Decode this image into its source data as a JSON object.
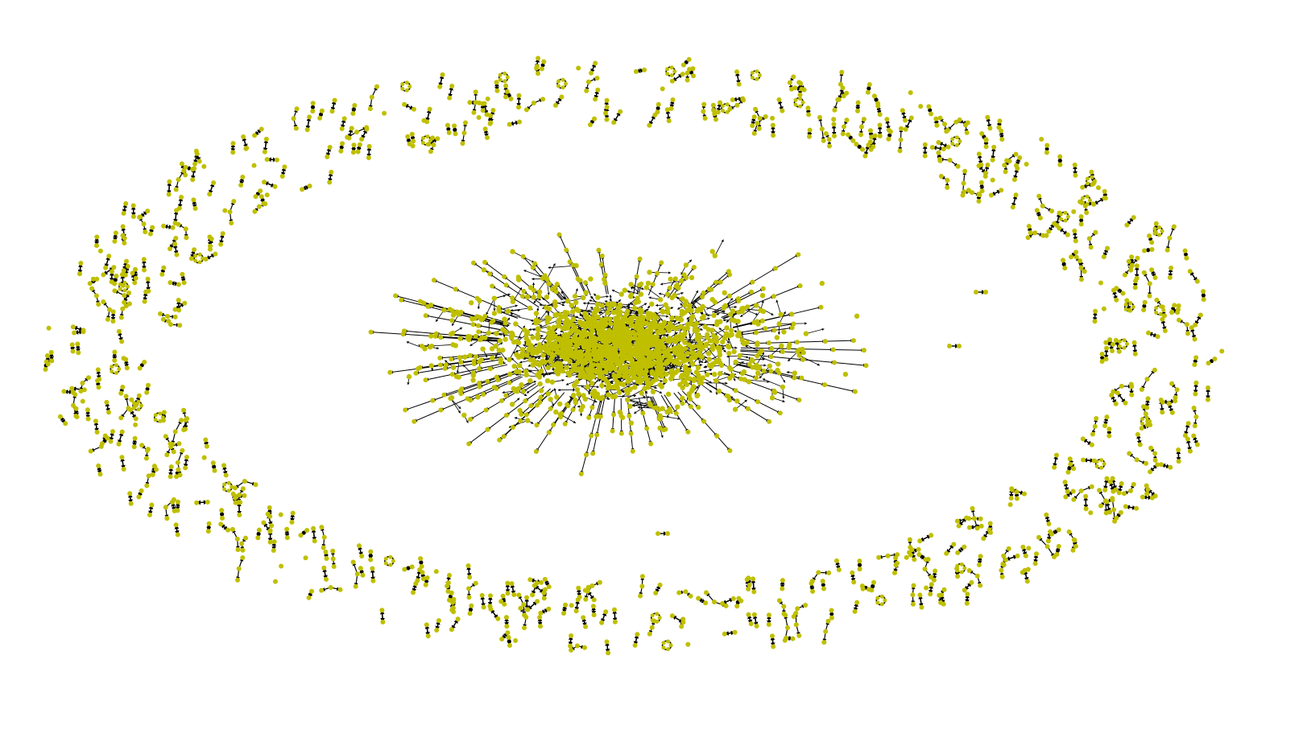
{
  "graph": {
    "node_color": "#bfbf00",
    "edge_color": "#000000"
  }
}
